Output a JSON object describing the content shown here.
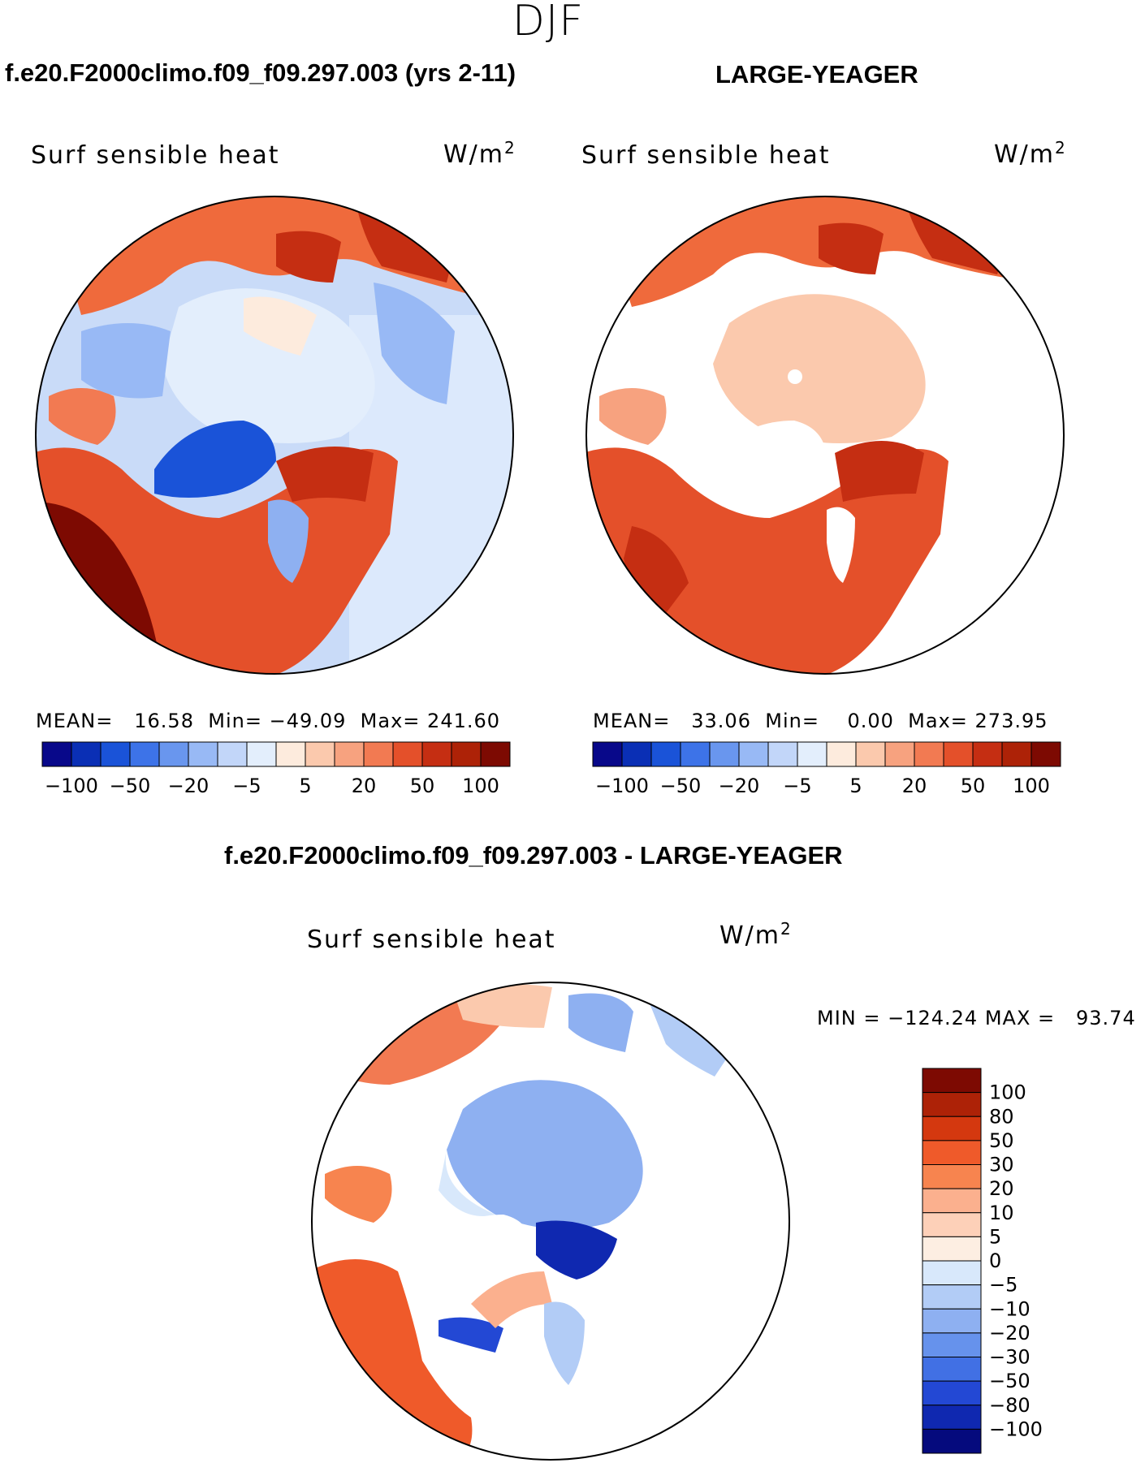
{
  "season": "DJF",
  "panels": [
    {
      "case_title": "f.e20.F2000climo.f09_f09.297.003 (yrs 2-11)",
      "label": "Surf sensible heat",
      "units_base": "W/m",
      "units_exp": "2",
      "stats": {
        "mean_label": "MEAN=",
        "mean": "16.58",
        "min_label": "Min=",
        "min": "−49.09",
        "max_label": "Max=",
        "max": "241.60"
      }
    },
    {
      "case_title": "LARGE-YEAGER",
      "label": "Surf sensible heat",
      "units_base": "W/m",
      "units_exp": "2",
      "stats": {
        "mean_label": "MEAN=",
        "mean": "33.06",
        "min_label": "Min=",
        "min": "0.00",
        "max_label": "Max=",
        "max": "273.95"
      }
    }
  ],
  "diff_panel": {
    "case_title": "f.e20.F2000climo.f09_f09.297.003 - LARGE-YEAGER",
    "label": "Surf sensible heat",
    "units_base": "W/m",
    "units_exp": "2",
    "stats": "MIN = −124.24 MAX =   93.74"
  },
  "colorbar_top": {
    "colors": [
      "#08088a",
      "#0a2fb5",
      "#1a53d8",
      "#3d73e8",
      "#6996ee",
      "#98b9f5",
      "#c2d6f9",
      "#e3eefc",
      "#fdebdd",
      "#fbc9ad",
      "#f7a27f",
      "#f27a52",
      "#e4502a",
      "#c52e12",
      "#ad2207",
      "#7d0a02"
    ],
    "tick_labels": [
      "−100",
      "−50",
      "−20",
      "−5",
      "5",
      "20",
      "50",
      "100"
    ]
  },
  "colorbar_diff": {
    "colors": [
      "#7d0a02",
      "#ad2207",
      "#d4380f",
      "#ef5a2a",
      "#f7844f",
      "#fbb08e",
      "#fdd0b8",
      "#fdeee2",
      "#d8e8fb",
      "#b2ccf6",
      "#8eb0f1",
      "#6692ec",
      "#4170e4",
      "#2348d4",
      "#0f28b0",
      "#050a7d"
    ],
    "tick_labels": [
      "100",
      "80",
      "50",
      "30",
      "20",
      "10",
      "5",
      "0",
      "−5",
      "−10",
      "−20",
      "−30",
      "−50",
      "−80",
      "−100"
    ]
  }
}
